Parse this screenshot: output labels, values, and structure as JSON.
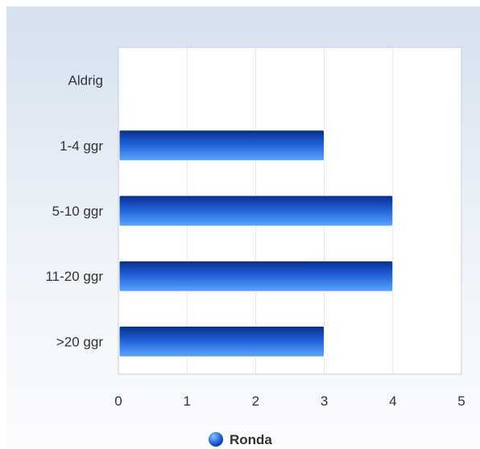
{
  "chart_data": {
    "type": "bar",
    "orientation": "horizontal",
    "categories": [
      "Aldrig",
      "1-4 ggr",
      "5-10 ggr",
      "11-20 ggr",
      ">20 ggr"
    ],
    "series": [
      {
        "name": "Ronda",
        "values": [
          0,
          3,
          4,
          4,
          3
        ],
        "color": "#2f6ee0"
      }
    ],
    "xlim": [
      0,
      5
    ],
    "xticks": [
      "0",
      "1",
      "2",
      "3",
      "4",
      "5"
    ],
    "grid": true,
    "legend_position": "bottom-center",
    "title": "",
    "xlabel": "",
    "ylabel": ""
  }
}
